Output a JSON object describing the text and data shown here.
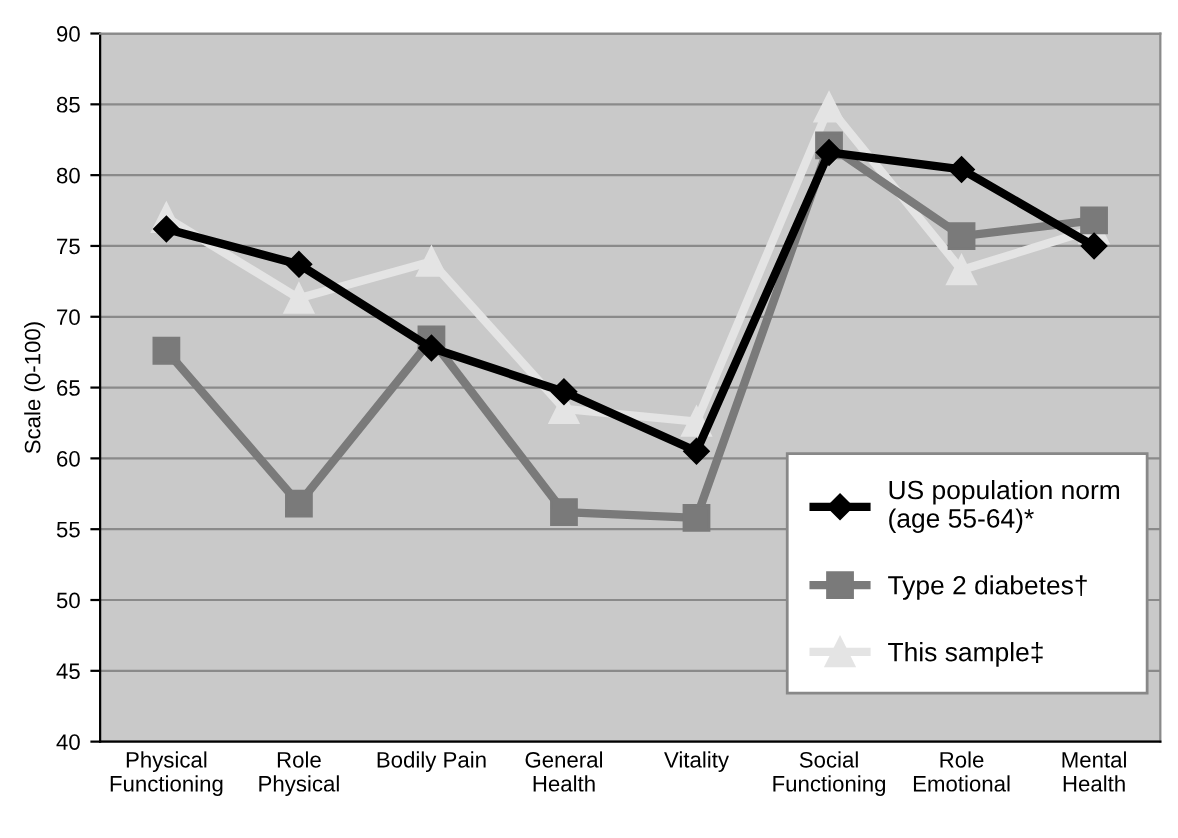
{
  "chart_data": {
    "type": "line",
    "ylabel": "Scale (0-100)",
    "categories": [
      "Physical\nFunctioning",
      "Role\nPhysical",
      "Bodily Pain",
      "General\nHealth",
      "Vitality",
      "Social\nFunctioning",
      "Role\nEmotional",
      "Mental\nHealth"
    ],
    "series": [
      {
        "name": "US population norm\n(age 55-64)*",
        "color": "#000000",
        "marker": "diamond",
        "values": [
          76.2,
          73.7,
          67.8,
          64.7,
          60.5,
          81.6,
          80.4,
          75.0
        ]
      },
      {
        "name": "Type 2 diabetes†",
        "color": "#7a7a7a",
        "marker": "square",
        "values": [
          67.6,
          56.8,
          68.4,
          56.2,
          55.8,
          82.1,
          75.7,
          76.8
        ]
      },
      {
        "name": "This sample‡",
        "color": "#e4e4e4",
        "marker": "triangle",
        "values": [
          77.0,
          71.3,
          73.9,
          63.5,
          62.6,
          84.8,
          73.3,
          76.2
        ]
      }
    ],
    "ylim": [
      40,
      90
    ],
    "yticks": [
      40,
      45,
      50,
      55,
      60,
      65,
      70,
      75,
      80,
      85,
      90
    ],
    "grid": "y",
    "legend": "bottom right"
  }
}
